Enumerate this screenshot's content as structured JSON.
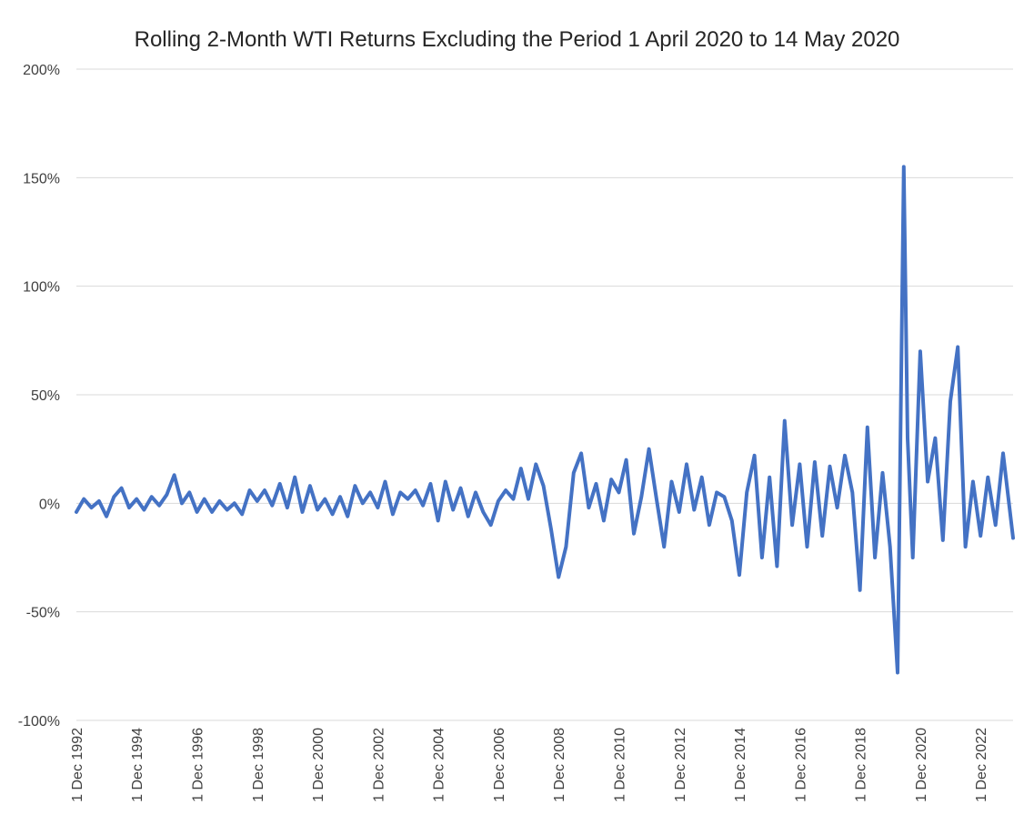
{
  "chart_data": {
    "type": "line",
    "title": "Rolling 2-Month WTI Returns Excluding the Period 1 April 2020 to 14 May 2020",
    "xlabel": "",
    "ylabel": "",
    "ylim": [
      -1.0,
      2.0
    ],
    "yticks": [
      {
        "value": 2.0,
        "label": "200%"
      },
      {
        "value": 1.5,
        "label": "150%"
      },
      {
        "value": 1.0,
        "label": "100%"
      },
      {
        "value": 0.5,
        "label": "50%"
      },
      {
        "value": 0.0,
        "label": "0%"
      },
      {
        "value": -0.5,
        "label": "-50%"
      },
      {
        "value": -1.0,
        "label": "-100%"
      }
    ],
    "xlim": [
      "1992-12-01",
      "2023-12-31"
    ],
    "xticks": [
      {
        "value": "1992-12-01",
        "label": "1 Dec 1992"
      },
      {
        "value": "1994-12-01",
        "label": "1 Dec 1994"
      },
      {
        "value": "1996-12-01",
        "label": "1 Dec 1996"
      },
      {
        "value": "1998-12-01",
        "label": "1 Dec 1998"
      },
      {
        "value": "2000-12-01",
        "label": "1 Dec 2000"
      },
      {
        "value": "2002-12-01",
        "label": "1 Dec 2002"
      },
      {
        "value": "2004-12-01",
        "label": "1 Dec 2004"
      },
      {
        "value": "2006-12-01",
        "label": "1 Dec 2006"
      },
      {
        "value": "2008-12-01",
        "label": "1 Dec 2008"
      },
      {
        "value": "2010-12-01",
        "label": "1 Dec 2010"
      },
      {
        "value": "2012-12-01",
        "label": "1 Dec 2012"
      },
      {
        "value": "2014-12-01",
        "label": "1 Dec 2014"
      },
      {
        "value": "2016-12-01",
        "label": "1 Dec 2016"
      },
      {
        "value": "2018-12-01",
        "label": "1 Dec 2018"
      },
      {
        "value": "2020-12-01",
        "label": "1 Dec 2020"
      },
      {
        "value": "2022-12-01",
        "label": "1 Dec 2022"
      }
    ],
    "grid": true,
    "series": [
      {
        "color": "#4472c4",
        "points": [
          [
            "1992-12-01",
            -0.04
          ],
          [
            "1993-03-01",
            0.02
          ],
          [
            "1993-06-01",
            -0.02
          ],
          [
            "1993-09-01",
            0.01
          ],
          [
            "1993-12-01",
            -0.06
          ],
          [
            "1994-03-01",
            0.03
          ],
          [
            "1994-06-01",
            0.07
          ],
          [
            "1994-09-01",
            -0.02
          ],
          [
            "1994-12-01",
            0.02
          ],
          [
            "1995-03-01",
            -0.03
          ],
          [
            "1995-06-01",
            0.03
          ],
          [
            "1995-09-01",
            -0.01
          ],
          [
            "1995-12-01",
            0.04
          ],
          [
            "1996-03-01",
            0.13
          ],
          [
            "1996-06-01",
            0.0
          ],
          [
            "1996-09-01",
            0.05
          ],
          [
            "1996-12-01",
            -0.04
          ],
          [
            "1997-03-01",
            0.02
          ],
          [
            "1997-06-01",
            -0.04
          ],
          [
            "1997-09-01",
            0.01
          ],
          [
            "1997-12-01",
            -0.03
          ],
          [
            "1998-03-01",
            0.0
          ],
          [
            "1998-06-01",
            -0.05
          ],
          [
            "1998-09-01",
            0.06
          ],
          [
            "1998-12-01",
            0.01
          ],
          [
            "1999-03-01",
            0.06
          ],
          [
            "1999-06-01",
            -0.01
          ],
          [
            "1999-09-01",
            0.09
          ],
          [
            "1999-12-01",
            -0.02
          ],
          [
            "2000-03-01",
            0.12
          ],
          [
            "2000-06-01",
            -0.04
          ],
          [
            "2000-09-01",
            0.08
          ],
          [
            "2000-12-01",
            -0.03
          ],
          [
            "2001-03-01",
            0.02
          ],
          [
            "2001-06-01",
            -0.05
          ],
          [
            "2001-09-01",
            0.03
          ],
          [
            "2001-12-01",
            -0.06
          ],
          [
            "2002-03-01",
            0.08
          ],
          [
            "2002-06-01",
            0.0
          ],
          [
            "2002-09-01",
            0.05
          ],
          [
            "2002-12-01",
            -0.02
          ],
          [
            "2003-03-01",
            0.1
          ],
          [
            "2003-06-01",
            -0.05
          ],
          [
            "2003-09-01",
            0.05
          ],
          [
            "2003-12-01",
            0.02
          ],
          [
            "2004-03-01",
            0.06
          ],
          [
            "2004-06-01",
            -0.01
          ],
          [
            "2004-09-01",
            0.09
          ],
          [
            "2004-12-01",
            -0.08
          ],
          [
            "2005-03-01",
            0.1
          ],
          [
            "2005-06-01",
            -0.03
          ],
          [
            "2005-09-01",
            0.07
          ],
          [
            "2005-12-01",
            -0.06
          ],
          [
            "2006-03-01",
            0.05
          ],
          [
            "2006-06-01",
            -0.04
          ],
          [
            "2006-09-01",
            -0.1
          ],
          [
            "2006-12-01",
            0.01
          ],
          [
            "2007-03-01",
            0.06
          ],
          [
            "2007-06-01",
            0.02
          ],
          [
            "2007-09-01",
            0.16
          ],
          [
            "2007-12-01",
            0.02
          ],
          [
            "2008-03-01",
            0.18
          ],
          [
            "2008-06-01",
            0.08
          ],
          [
            "2008-09-01",
            -0.12
          ],
          [
            "2008-12-01",
            -0.34
          ],
          [
            "2009-03-01",
            -0.2
          ],
          [
            "2009-06-01",
            0.14
          ],
          [
            "2009-09-01",
            0.23
          ],
          [
            "2009-12-01",
            -0.02
          ],
          [
            "2010-03-01",
            0.09
          ],
          [
            "2010-06-01",
            -0.08
          ],
          [
            "2010-09-01",
            0.11
          ],
          [
            "2010-12-01",
            0.05
          ],
          [
            "2011-03-01",
            0.2
          ],
          [
            "2011-06-01",
            -0.14
          ],
          [
            "2011-09-01",
            0.03
          ],
          [
            "2011-12-01",
            0.25
          ],
          [
            "2012-03-01",
            0.02
          ],
          [
            "2012-06-01",
            -0.2
          ],
          [
            "2012-09-01",
            0.1
          ],
          [
            "2012-12-01",
            -0.04
          ],
          [
            "2013-03-01",
            0.18
          ],
          [
            "2013-06-01",
            -0.03
          ],
          [
            "2013-09-01",
            0.12
          ],
          [
            "2013-12-01",
            -0.1
          ],
          [
            "2014-03-01",
            0.05
          ],
          [
            "2014-06-01",
            0.03
          ],
          [
            "2014-09-01",
            -0.08
          ],
          [
            "2014-12-01",
            -0.33
          ],
          [
            "2015-03-01",
            0.05
          ],
          [
            "2015-06-01",
            0.22
          ],
          [
            "2015-09-01",
            -0.25
          ],
          [
            "2015-12-01",
            0.12
          ],
          [
            "2016-03-01",
            -0.29
          ],
          [
            "2016-06-01",
            0.38
          ],
          [
            "2016-09-01",
            -0.1
          ],
          [
            "2016-12-01",
            0.18
          ],
          [
            "2017-03-01",
            -0.2
          ],
          [
            "2017-06-01",
            0.19
          ],
          [
            "2017-09-01",
            -0.15
          ],
          [
            "2017-12-01",
            0.17
          ],
          [
            "2018-03-01",
            -0.02
          ],
          [
            "2018-06-01",
            0.22
          ],
          [
            "2018-09-01",
            0.05
          ],
          [
            "2018-12-01",
            -0.4
          ],
          [
            "2019-03-01",
            0.35
          ],
          [
            "2019-06-01",
            -0.25
          ],
          [
            "2019-09-01",
            0.14
          ],
          [
            "2019-12-01",
            -0.2
          ],
          [
            "2020-03-01",
            -0.78
          ],
          [
            "2020-05-15",
            1.55
          ],
          [
            "2020-07-01",
            0.3
          ],
          [
            "2020-09-01",
            -0.25
          ],
          [
            "2020-12-01",
            0.7
          ],
          [
            "2021-03-01",
            0.1
          ],
          [
            "2021-06-01",
            0.3
          ],
          [
            "2021-09-01",
            -0.17
          ],
          [
            "2021-12-01",
            0.47
          ],
          [
            "2022-03-01",
            0.72
          ],
          [
            "2022-06-01",
            -0.2
          ],
          [
            "2022-09-01",
            0.1
          ],
          [
            "2022-12-01",
            -0.15
          ],
          [
            "2023-03-01",
            0.12
          ],
          [
            "2023-06-01",
            -0.1
          ],
          [
            "2023-09-01",
            0.23
          ],
          [
            "2023-12-31",
            -0.16
          ]
        ]
      }
    ]
  }
}
